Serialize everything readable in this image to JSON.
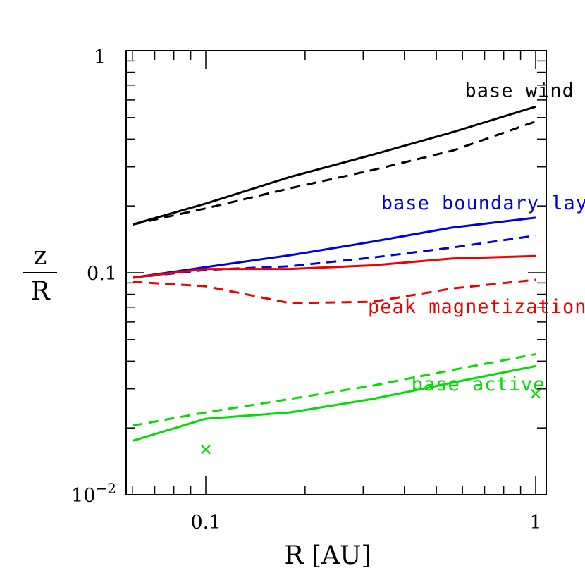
{
  "chart_data": {
    "type": "line",
    "title": "",
    "xlabel": "R [AU]",
    "ylabel_top": "z",
    "ylabel_bottom": "R",
    "xscale": "log",
    "yscale": "log",
    "xlim": [
      0.06,
      1.05
    ],
    "ylim": [
      0.01,
      1
    ],
    "xticks": [
      {
        "value": 0.1,
        "label": "0.1"
      },
      {
        "value": 1,
        "label": "1"
      }
    ],
    "yticks": [
      {
        "value": 0.1,
        "label": "0.1"
      },
      {
        "value": 1,
        "label": "1"
      }
    ],
    "ytick_bottom": {
      "value": 0.01,
      "base": "10",
      "exp": "−2"
    },
    "grid": false,
    "legend": "none",
    "colors": {
      "black": "#000000",
      "blue": "#0000dd",
      "red": "#ee0000",
      "green": "#00dd00"
    },
    "series": [
      {
        "color": "black",
        "dash": false,
        "x": [
          0.06,
          0.1,
          0.18,
          0.32,
          0.56,
          1.0
        ],
        "y": [
          0.165,
          0.205,
          0.27,
          0.34,
          0.43,
          0.56
        ]
      },
      {
        "color": "black",
        "dash": true,
        "x": [
          0.06,
          0.1,
          0.18,
          0.32,
          0.56,
          1.0
        ],
        "y": [
          0.165,
          0.195,
          0.24,
          0.29,
          0.355,
          0.48
        ]
      },
      {
        "color": "blue",
        "dash": false,
        "x": [
          0.06,
          0.1,
          0.18,
          0.32,
          0.56,
          1.0
        ],
        "y": [
          0.095,
          0.106,
          0.12,
          0.138,
          0.16,
          0.177
        ]
      },
      {
        "color": "blue",
        "dash": true,
        "x": [
          0.06,
          0.1,
          0.18,
          0.32,
          0.56,
          1.0
        ],
        "y": [
          0.095,
          0.103,
          0.107,
          0.117,
          0.13,
          0.147
        ]
      },
      {
        "color": "red",
        "dash": false,
        "x": [
          0.06,
          0.1,
          0.18,
          0.32,
          0.56,
          1.0
        ],
        "y": [
          0.095,
          0.104,
          0.104,
          0.108,
          0.116,
          0.119
        ]
      },
      {
        "color": "red",
        "dash": true,
        "x": [
          0.06,
          0.1,
          0.18,
          0.32,
          0.56,
          1.0
        ],
        "y": [
          0.091,
          0.087,
          0.073,
          0.074,
          0.085,
          0.093
        ]
      },
      {
        "color": "green",
        "dash": false,
        "x": [
          0.06,
          0.1,
          0.18,
          0.32,
          0.56,
          1.0
        ],
        "y": [
          0.0175,
          0.022,
          0.0235,
          0.027,
          0.032,
          0.038
        ]
      },
      {
        "color": "green",
        "dash": true,
        "x": [
          0.06,
          0.1,
          0.18,
          0.32,
          0.56,
          1.0
        ],
        "y": [
          0.0205,
          0.0235,
          0.027,
          0.031,
          0.0365,
          0.043
        ]
      }
    ],
    "markers": [
      {
        "color": "green",
        "symbol": "x",
        "x": 0.1,
        "y": 0.016
      },
      {
        "color": "green",
        "symbol": "x",
        "x": 1.0,
        "y": 0.0285
      }
    ],
    "annotations": [
      {
        "text": "base wind",
        "color": "black",
        "x": 0.61,
        "y": 0.62
      },
      {
        "text": "base boundary layer",
        "color": "blue",
        "x": 0.34,
        "y": 0.193
      },
      {
        "text": "peak magnetization",
        "color": "red",
        "x": 0.31,
        "y": 0.066
      },
      {
        "text": "base active",
        "color": "green",
        "x": 0.42,
        "y": 0.0295
      }
    ]
  }
}
